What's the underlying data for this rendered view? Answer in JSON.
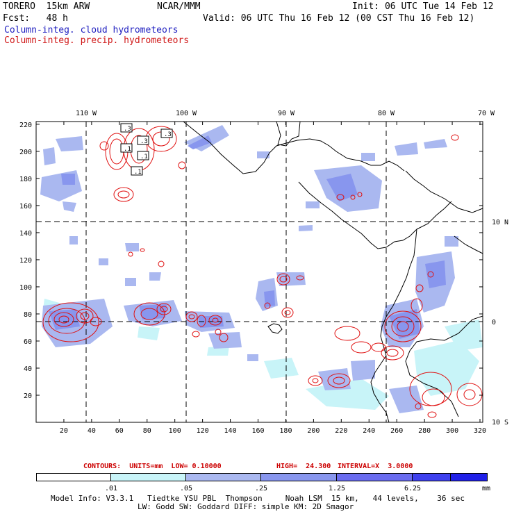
{
  "header": {
    "model": "TORERO  15km ARW",
    "org": "NCAR/MMM",
    "init": "Init: 06 UTC Tue 14 Feb 12",
    "fcst": "Fcst:   48 h",
    "valid": "Valid: 06 UTC Thu 16 Feb 12 (00 CST Thu 16 Feb 12)",
    "field1": "Column-integ. cloud hydrometeors",
    "field2": "Column-integ. precip. hydrometeors"
  },
  "map": {
    "top_lon_labels": [
      "110 W",
      "100 W",
      "90 W",
      "80 W",
      "70 W"
    ],
    "right_lat_labels": [
      "10 N",
      "0",
      "10 S"
    ],
    "y_ticks": [
      "220",
      "200",
      "180",
      "160",
      "140",
      "120",
      "100",
      "80",
      "60",
      "40",
      "20"
    ],
    "x_ticks": [
      "20",
      "40",
      "60",
      "80",
      "100",
      "120",
      "140",
      "160",
      "180",
      "200",
      "220",
      "240",
      "260",
      "280",
      "300",
      "320"
    ],
    "contour_labels": [
      ".3",
      ".3",
      ".3",
      ".1",
      ".1",
      ".1"
    ],
    "colors": {
      "cloud_light": "#c8f4f8",
      "cloud_mid": "#aab8f0",
      "cloud_dark": "#8896ee",
      "precip": "#e01010",
      "coast": "#000000"
    }
  },
  "contour_info": {
    "contours": "CONTOURS:  UNITS=mm  LOW= 0.10000",
    "high": "HIGH=  24.300",
    "interval": "INTERVAL=X  3.0000"
  },
  "colorbar": {
    "labels": [
      ".01",
      ".05",
      ".25",
      "1.25",
      "6.25"
    ],
    "unit": "mm",
    "colors": [
      "#ffffff",
      "#c8f4f8",
      "#aab8f0",
      "#8896ee",
      "#6a6cf0",
      "#3e40ee",
      "#2020e8"
    ]
  },
  "footer": {
    "line1": "Model Info: V3.3.1   Tiedtke YSU PBL  Thompson     Noah LSM  15 km,   44 levels,    36 sec",
    "line2": "LW: Godd SW: Goddard DIFF: simple KM: 2D Smagor"
  }
}
